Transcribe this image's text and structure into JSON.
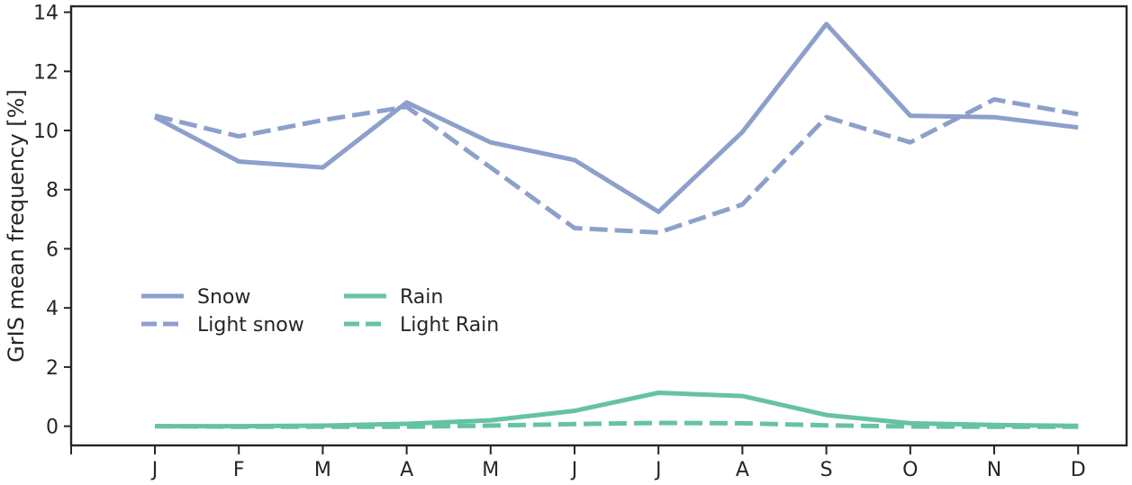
{
  "chart_data": {
    "type": "line",
    "title": "",
    "xlabel": "",
    "ylabel": "GrIS mean frequency [%]",
    "categories": [
      "J",
      "F",
      "M",
      "A",
      "M",
      "J",
      "J",
      "A",
      "S",
      "O",
      "N",
      "D"
    ],
    "ylim": [
      -0.65,
      14.2
    ],
    "yticks": [
      0,
      2,
      4,
      6,
      8,
      10,
      12,
      14
    ],
    "grid": false,
    "legend_position": "center-left",
    "series": [
      {
        "name": "Snow",
        "style": "solid",
        "color": "#8da0cb",
        "values": [
          10.45,
          8.95,
          8.75,
          10.95,
          9.6,
          9.0,
          7.25,
          9.95,
          13.6,
          10.5,
          10.45,
          10.1
        ]
      },
      {
        "name": "Light snow",
        "style": "dashed",
        "color": "#8da0cb",
        "values": [
          10.5,
          9.8,
          10.35,
          10.8,
          8.75,
          6.7,
          6.55,
          7.5,
          10.45,
          9.6,
          11.05,
          10.55
        ]
      },
      {
        "name": "Rain",
        "style": "solid",
        "color": "#66c2a5",
        "values": [
          0.0,
          0.0,
          0.02,
          0.08,
          0.2,
          0.52,
          1.13,
          1.02,
          0.38,
          0.1,
          0.04,
          0.01
        ]
      },
      {
        "name": "Light Rain",
        "style": "dashed",
        "color": "#66c2a5",
        "values": [
          0.0,
          -0.02,
          -0.02,
          -0.02,
          0.02,
          0.07,
          0.11,
          0.1,
          0.03,
          -0.01,
          -0.02,
          -0.02
        ]
      }
    ]
  }
}
